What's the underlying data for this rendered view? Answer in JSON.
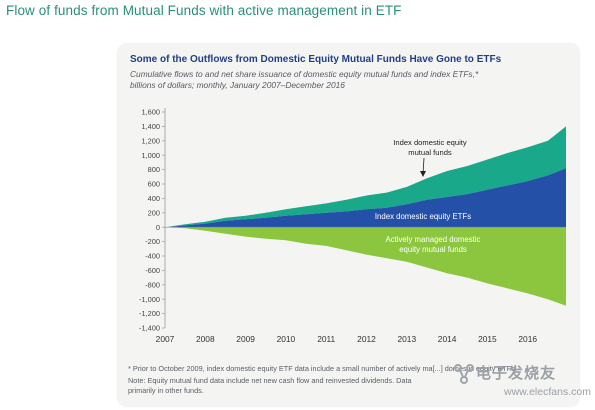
{
  "page": {
    "heading": "Flow of funds from Mutual Funds with active management in ETF"
  },
  "chart_data": {
    "type": "area",
    "title": "Some of the Outflows from Domestic Equity Mutual Funds Have Gone to ETFs",
    "subtitle_line1": "Cumulative flows to and net share issuance of domestic equity mutual funds and index ETFs,*",
    "subtitle_line2": "billions of dollars; monthly, January 2007–December 2016",
    "xlabel": "",
    "ylabel": "",
    "x_ticks": [
      "2007",
      "2008",
      "2009",
      "2010",
      "2011",
      "2012",
      "2013",
      "2014",
      "2015",
      "2016"
    ],
    "y_ticks": [
      "1,600",
      "1,400",
      "1,200",
      "1,000",
      "800",
      "600",
      "400",
      "200",
      "0",
      "-200",
      "-400",
      "-600",
      "-800",
      "-1,000",
      "-1,200",
      "-1,400"
    ],
    "ylim": [
      -1400,
      1600
    ],
    "x": [
      2007.0,
      2007.5,
      2008.0,
      2008.5,
      2009.0,
      2009.5,
      2010.0,
      2010.5,
      2011.0,
      2011.5,
      2012.0,
      2012.5,
      2013.0,
      2013.5,
      2014.0,
      2014.5,
      2015.0,
      2015.5,
      2016.0,
      2016.5,
      2016.95
    ],
    "series": [
      {
        "name": "Index domestic equity ETFs",
        "values": [
          0,
          25,
          50,
          90,
          110,
          130,
          160,
          180,
          200,
          220,
          250,
          270,
          320,
          380,
          420,
          460,
          520,
          580,
          640,
          720,
          820
        ]
      },
      {
        "name": "Index domestic equity mutual funds",
        "values": [
          0,
          15,
          25,
          40,
          50,
          70,
          90,
          110,
          130,
          160,
          190,
          210,
          240,
          300,
          360,
          390,
          420,
          450,
          470,
          480,
          580
        ]
      },
      {
        "name": "Actively managed domestic equity mutual funds",
        "values": [
          0,
          -15,
          -50,
          -90,
          -130,
          -160,
          -180,
          -230,
          -260,
          -320,
          -380,
          -430,
          -480,
          -560,
          -640,
          -700,
          -780,
          -850,
          -920,
          -1000,
          -1090
        ]
      }
    ],
    "colors": {
      "Index domestic equity ETFs": "#2450a8",
      "Index domestic equity mutual funds": "#19a88a",
      "Actively managed domestic equity mutual funds": "#8cc63f"
    },
    "annotations": {
      "mutual_funds_label_line1": "Index domestic equity",
      "mutual_funds_label_line2": "mutual funds",
      "etf_label": "Index domestic equity ETFs",
      "active_label_line1": "Actively managed domestic",
      "active_label_line2": "equity mutual funds"
    },
    "grid": false
  },
  "footnotes": {
    "line1": "* Prior to October 2009, index domestic equity ETF data include a small number of actively ma[...] domestic equity ETFs.",
    "line2": "Note: Equity mutual fund data include net new cash flow and reinvested dividends. Data",
    "line3": "primarily in other funds."
  },
  "watermark": {
    "brand": "电子发烧友",
    "url": "www.elecfans.com"
  }
}
